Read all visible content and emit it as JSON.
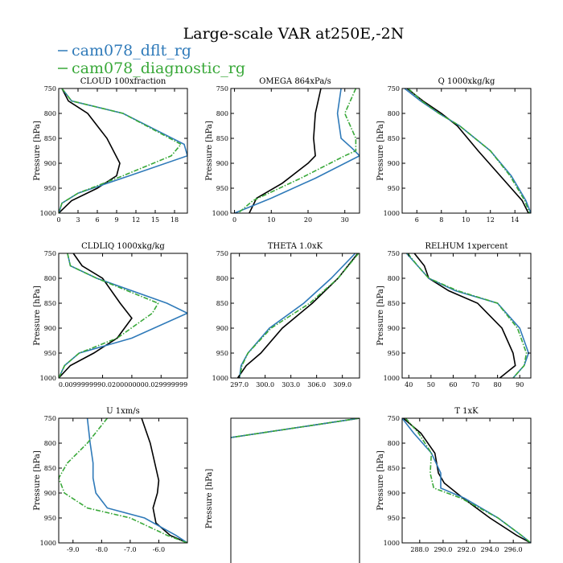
{
  "chart_data": {
    "type": "line",
    "title": "Large-scale VAR at250E,-2N",
    "legend": [
      {
        "name": "cam078_dflt_rg",
        "color": "#2f7ab9",
        "dash": "solid"
      },
      {
        "name": "cam078_diagnostic_rg",
        "color": "#39a839",
        "dash": "dashed"
      }
    ],
    "control_color": "#000000",
    "panels": [
      {
        "title": "CLOUD  100xfraction",
        "ylabel": "Pressure [hPa]",
        "xlim": [
          0,
          20
        ],
        "ylim": [
          750,
          1000
        ],
        "yticks": [
          750,
          800,
          850,
          900,
          950,
          1000
        ],
        "xticks": [
          0,
          3,
          6,
          9,
          12,
          15,
          18
        ],
        "xtick_labels": [
          "0",
          "3",
          "6",
          "9",
          "12",
          "15",
          "18"
        ],
        "series": [
          {
            "x": [
              0.5,
              1.5,
              4.5,
              7.5,
              9.5,
              9,
              6,
              2,
              0
            ],
            "y": [
              750,
              775,
              800,
              850,
              900,
              925,
              950,
              975,
              1000
            ]
          },
          {
            "x": [
              0.5,
              2,
              10,
              19.5,
              20,
              11,
              3,
              0.5,
              0
            ],
            "y": [
              750,
              775,
              800,
              862,
              885,
              925,
              960,
              980,
              1000
            ]
          },
          {
            "x": [
              0.5,
              2,
              10,
              19,
              17.5,
              10,
              3,
              0.5,
              0
            ],
            "y": [
              750,
              775,
              800,
              862,
              885,
              925,
              960,
              980,
              1000
            ]
          }
        ]
      },
      {
        "title": "OMEGA  864xPa/s",
        "ylabel": "Pressure [hPa]",
        "xlim": [
          -1,
          34
        ],
        "ylim": [
          750,
          1000
        ],
        "yticks": [
          750,
          800,
          850,
          900,
          950,
          1000
        ],
        "xticks": [
          0,
          10,
          20,
          30
        ],
        "xtick_labels": [
          "0",
          "10",
          "20",
          "30"
        ],
        "series": [
          {
            "x": [
              23.5,
              22,
              21.5,
              22,
              20,
              13,
              6,
              4
            ],
            "y": [
              750,
              800,
              850,
              885,
              900,
              940,
              970,
              1000
            ]
          },
          {
            "x": [
              29,
              28,
              29,
              32,
              34,
              22,
              10,
              0
            ],
            "y": [
              750,
              800,
              850,
              870,
              885,
              930,
              970,
              1000
            ]
          },
          {
            "x": [
              33,
              30,
              33,
              33,
              30,
              18,
              5,
              1
            ],
            "y": [
              750,
              800,
              850,
              875,
              885,
              930,
              975,
              1000
            ]
          }
        ]
      },
      {
        "title": "Q  1000xkg/kg",
        "ylabel": "Pressure [hPa]",
        "xlim": [
          4.8,
          15.3
        ],
        "ylim": [
          750,
          1000
        ],
        "yticks": [
          750,
          800,
          850,
          900,
          950,
          1000
        ],
        "xticks": [
          6,
          8,
          10,
          12,
          14
        ],
        "xtick_labels": [
          "6",
          "8",
          "10",
          "12",
          "14"
        ],
        "series": [
          {
            "x": [
              5.2,
              6.5,
              8,
              9.3,
              11,
              12.8,
              14.6,
              15.1
            ],
            "y": [
              750,
              775,
              800,
              825,
              875,
              925,
              975,
              1000
            ]
          },
          {
            "x": [
              5,
              6.3,
              7.8,
              9.5,
              12,
              13.7,
              14.9,
              15.3
            ],
            "y": [
              750,
              775,
              800,
              825,
              875,
              925,
              975,
              1000
            ]
          },
          {
            "x": [
              5.3,
              6.4,
              7.8,
              9.5,
              12,
              13.6,
              14.8,
              15.2
            ],
            "y": [
              750,
              775,
              800,
              825,
              875,
              925,
              975,
              1000
            ]
          }
        ]
      },
      {
        "title": "CLDLIQ  1000xkg/kg",
        "ylabel": "Pressure [hPa]",
        "xlim": [
          -0.005,
          0.039
        ],
        "ylim": [
          750,
          1000
        ],
        "yticks": [
          750,
          800,
          850,
          900,
          950,
          1000
        ],
        "xticks": [
          0.01,
          0.02,
          0.03
        ],
        "xtick_labels": [
          "0.0099999990.0200000000.029999999"
        ],
        "series": [
          {
            "x": [
              0,
              0.003,
              0.01,
              0.016,
              0.02,
              0.015,
              0.007,
              -0.001,
              -0.005
            ],
            "y": [
              750,
              775,
              800,
              850,
              880,
              920,
              950,
              975,
              1000
            ]
          },
          {
            "x": [
              -0.002,
              -0.001,
              0.008,
              0.032,
              0.039,
              0.02,
              0.002,
              -0.003,
              -0.005
            ],
            "y": [
              750,
              775,
              800,
              850,
              870,
              920,
              950,
              975,
              1000
            ]
          },
          {
            "x": [
              -0.002,
              -0.001,
              0.008,
              0.029,
              0.027,
              0.015,
              0.002,
              -0.003,
              -0.005
            ],
            "y": [
              750,
              775,
              800,
              850,
              870,
              920,
              950,
              975,
              1000
            ]
          }
        ]
      },
      {
        "title": "THETA  1.0xK",
        "ylabel": "",
        "xlim": [
          296.0,
          311.0
        ],
        "ylim": [
          750,
          1000
        ],
        "yticks": [
          750,
          800,
          850,
          900,
          950,
          1000
        ],
        "xticks": [
          297,
          300,
          303,
          306,
          309
        ],
        "xtick_labels": [
          "297.0",
          "300.0",
          "303.0",
          "306.0",
          "309.0"
        ],
        "series": [
          {
            "x": [
              310.8,
              308.5,
              305.5,
              302,
              299.5,
              297.8,
              296.8
            ],
            "y": [
              750,
              800,
              850,
              900,
              950,
              975,
              1000
            ]
          },
          {
            "x": [
              310.5,
              307.7,
              304.5,
              300.5,
              298,
              297.2,
              297
            ],
            "y": [
              750,
              800,
              850,
              900,
              950,
              975,
              1000
            ]
          },
          {
            "x": [
              310.9,
              308.5,
              305.2,
              300.7,
              298,
              297.3,
              297
            ],
            "y": [
              750,
              800,
              850,
              900,
              950,
              975,
              1000
            ]
          }
        ]
      },
      {
        "title": "RELHUM  1xpercent",
        "ylabel": "Pressure [hPa]",
        "xlim": [
          37,
          95
        ],
        "ylim": [
          750,
          1000
        ],
        "yticks": [
          750,
          800,
          850,
          900,
          950,
          1000
        ],
        "xticks": [
          40,
          50,
          60,
          70,
          80,
          90
        ],
        "xtick_labels": [
          "40",
          "50",
          "60",
          "70",
          "80",
          "90"
        ],
        "series": [
          {
            "x": [
              42.5,
              47,
              49,
              58,
              71,
              82,
              87,
              88,
              81
            ],
            "y": [
              750,
              775,
              800,
              825,
              850,
              900,
              950,
              975,
              1000
            ]
          },
          {
            "x": [
              39,
              44,
              49,
              61,
              80,
              90,
              94,
              92,
              87
            ],
            "y": [
              750,
              775,
              800,
              825,
              850,
              900,
              950,
              975,
              1000
            ]
          },
          {
            "x": [
              39.5,
              44,
              49,
              62,
              80,
              89,
              93,
              92,
              87
            ],
            "y": [
              750,
              775,
              800,
              825,
              850,
              900,
              950,
              975,
              1000
            ]
          }
        ]
      },
      {
        "title": "U  1xm/s",
        "ylabel": "Pressure [hPa]",
        "xlim": [
          -9.5,
          -5.0
        ],
        "ylim": [
          750,
          1000
        ],
        "yticks": [
          750,
          800,
          850,
          900,
          950,
          1000
        ],
        "xticks": [
          -9,
          -8,
          -7,
          -6
        ],
        "xtick_labels": [
          "-9.0",
          "-8.0",
          "-7.0",
          "-6.0"
        ],
        "series": [
          {
            "x": [
              -6.6,
              -6.3,
              -6.1,
              -6.0,
              -6.05,
              -6.2,
              -6.1,
              -5.6,
              -5.0
            ],
            "y": [
              750,
              800,
              850,
              875,
              900,
              930,
              960,
              985,
              1000
            ]
          },
          {
            "x": [
              -8.5,
              -8.4,
              -8.3,
              -8.3,
              -8.2,
              -7.8,
              -6.5,
              -5.4,
              -5.0
            ],
            "y": [
              750,
              800,
              840,
              870,
              900,
              930,
              950,
              985,
              1000
            ]
          },
          {
            "x": [
              -7.8,
              -8.5,
              -9.2,
              -9.5,
              -9.3,
              -8.5,
              -7.0,
              -5.7,
              -5.0
            ],
            "y": [
              750,
              800,
              840,
              870,
              900,
              930,
              950,
              985,
              1000
            ]
          }
        ]
      },
      {
        "title": "",
        "ylabel": "Pressure [hPa]",
        "xlim": [
          0,
          1
        ],
        "ylim": [
          0,
          1
        ],
        "yticks": [],
        "xticks": [],
        "xtick_labels": [],
        "series": [
          {
            "x": [
              1,
              0
            ],
            "y": [
              0,
              0.12
            ]
          },
          {
            "x": [
              1,
              0
            ],
            "y": [
              0,
              0.12
            ]
          },
          {
            "x": [
              1,
              0
            ],
            "y": [
              0,
              0.12
            ]
          }
        ]
      },
      {
        "title": "T  1xK",
        "ylabel": "Pressure [hPa]",
        "xlim": [
          286.5,
          297.5
        ],
        "ylim": [
          750,
          1000
        ],
        "yticks": [
          750,
          800,
          850,
          900,
          950,
          1000
        ],
        "xticks": [
          288,
          290,
          292,
          294,
          296
        ],
        "xtick_labels": [
          "288.0",
          "290.0",
          "292.0",
          "294.0",
          "296.0"
        ],
        "series": [
          {
            "x": [
              286.6,
              288.1,
              289.3,
              289.6,
              290.1,
              291.7,
              294,
              296.3,
              297.5
            ],
            "y": [
              750,
              780,
              820,
              860,
              880,
              910,
              950,
              985,
              1000
            ]
          },
          {
            "x": [
              286.5,
              287.5,
              289,
              289.8,
              289.8,
              291.8,
              294.7,
              296.7,
              297.5
            ],
            "y": [
              750,
              780,
              820,
              860,
              890,
              910,
              950,
              985,
              1000
            ]
          },
          {
            "x": [
              286.8,
              287.9,
              289,
              288.9,
              289.2,
              291.5,
              294.7,
              296.7,
              297.5
            ],
            "y": [
              750,
              780,
              820,
              860,
              890,
              910,
              950,
              985,
              1000
            ]
          }
        ]
      }
    ]
  }
}
